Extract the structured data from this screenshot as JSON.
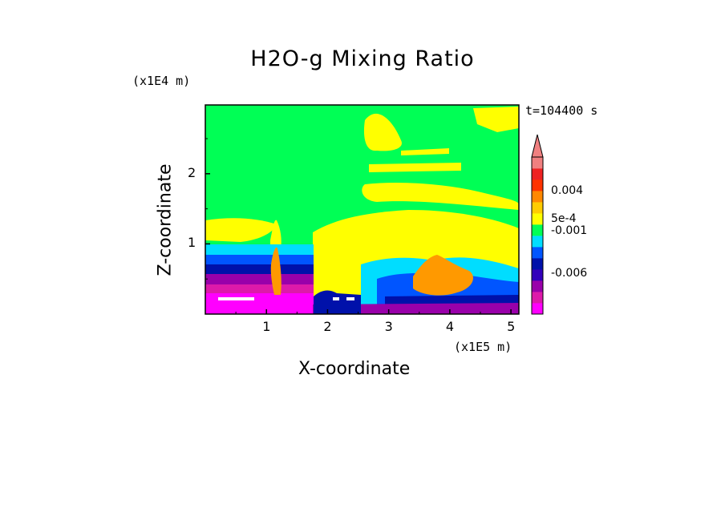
{
  "chart_data": {
    "type": "heatmap",
    "title": "H2O-g Mixing Ratio",
    "xlabel": "X-coordinate",
    "ylabel": "Z-coordinate",
    "x_unit_label": "(x1E5 m)",
    "y_unit_label": "(x1E4 m)",
    "annotation": "t=104400 s",
    "xlim": [
      0,
      5.13
    ],
    "ylim": [
      0,
      2.98
    ],
    "x_ticks": [
      "1",
      "2",
      "3",
      "4",
      "5"
    ],
    "y_ticks": [
      "1",
      "2"
    ],
    "colorbar": {
      "orientation": "vertical",
      "extend": "max",
      "colors": [
        "#ff00ff",
        "#dd1aaa",
        "#9900aa",
        "#3300bb",
        "#0011aa",
        "#0055ff",
        "#00ddff",
        "#00ff55",
        "#ffff00",
        "#ffcc00",
        "#ff8800",
        "#ff3300",
        "#ee2222",
        "#f08080"
      ],
      "labels": [
        "-0.006",
        "-0.001",
        "5e-4",
        "0.004"
      ]
    },
    "regions": [
      {
        "level": "background",
        "color": "#00ff55"
      },
      {
        "level": "upper-right patches",
        "color": "#ffff00"
      },
      {
        "level": "boundary layer",
        "color": "#0055ff"
      },
      {
        "level": "surface",
        "color": "#ff00ff"
      }
    ]
  },
  "colors": {
    "green": "#00ff55",
    "yellow": "#ffff00",
    "orange": "#ff9900",
    "cyan": "#00ddff",
    "blue": "#0055ff",
    "navy": "#0011aa",
    "purple": "#9900aa",
    "magenta": "#ff00ff"
  }
}
